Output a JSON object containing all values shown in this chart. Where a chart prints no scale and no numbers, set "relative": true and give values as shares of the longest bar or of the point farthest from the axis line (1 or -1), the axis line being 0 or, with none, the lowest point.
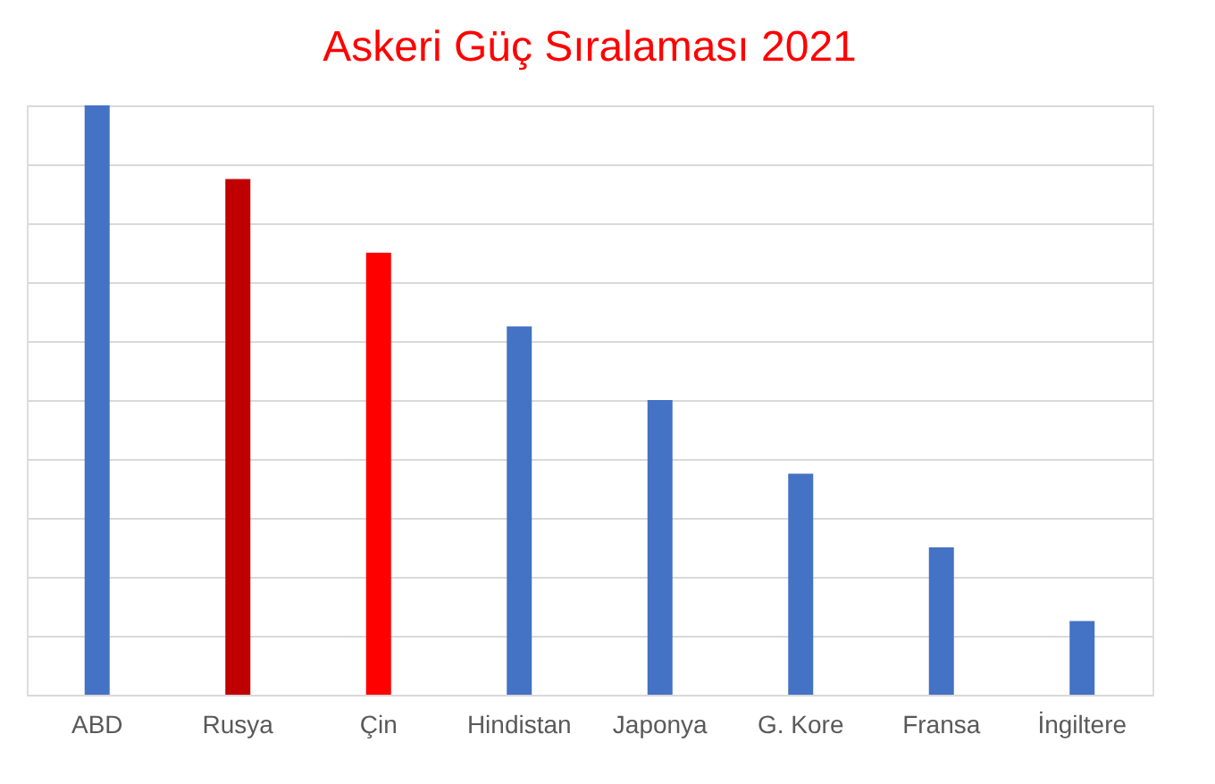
{
  "chart_data": {
    "type": "bar",
    "title": "Askeri Güç Sıralaması 2021",
    "relative": true,
    "grid": "y",
    "categories": [
      "ABD",
      "Rusya",
      "Çin",
      "Hindistan",
      "Japonya",
      "G. Kore",
      "Fransa",
      "İngiltere"
    ],
    "values": [
      1,
      0.875,
      0.75,
      0.625,
      0.5,
      0.375,
      0.25,
      0.125
    ],
    "colors": [
      "#4472c4",
      "#c00000",
      "#ff0000",
      "#4472c4",
      "#4472c4",
      "#4472c4",
      "#4472c4",
      "#4472c4"
    ]
  }
}
